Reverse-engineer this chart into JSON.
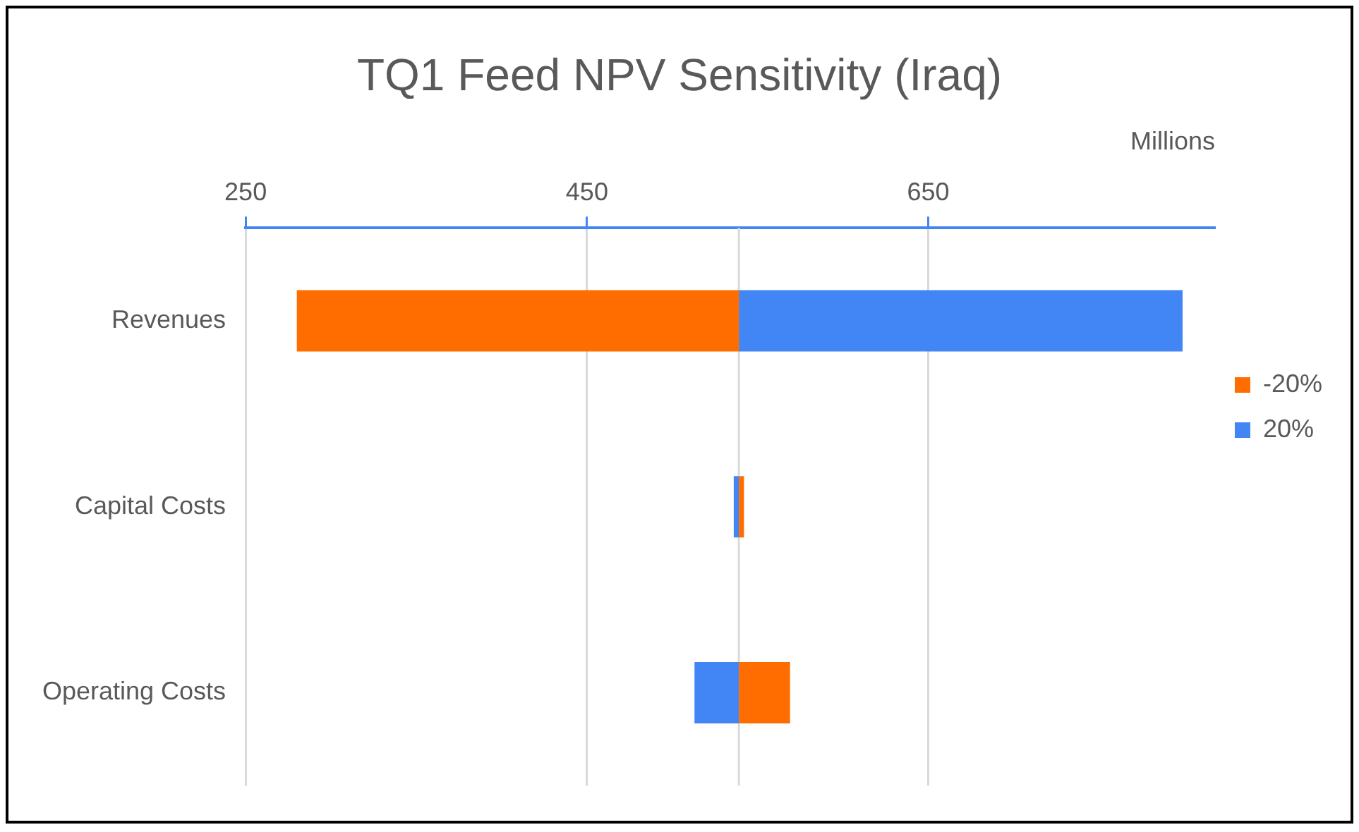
{
  "chart_data": {
    "type": "bar",
    "orientation": "horizontal",
    "title": "TQ1 Feed NPV Sensitivity (Iraq)",
    "xlabel": "Millions",
    "categories": [
      "Revenues",
      "Capital Costs",
      "Operating Costs"
    ],
    "series": [
      {
        "name": "-20%",
        "color": "#ff6d01",
        "base": [
          539,
          539,
          539
        ],
        "values": [
          -259,
          3,
          30
        ]
      },
      {
        "name": "20%",
        "color": "#4285f4",
        "base": [
          539,
          539,
          539
        ],
        "values": [
          260,
          -3,
          -26
        ]
      }
    ],
    "xlim": [
      250,
      818
    ],
    "xticks": [
      250,
      450,
      650
    ],
    "grid": "x",
    "legend": "right",
    "ref_lines": [
      {
        "axis": "x",
        "value": 539,
        "color": "#d9d9d9"
      }
    ]
  }
}
